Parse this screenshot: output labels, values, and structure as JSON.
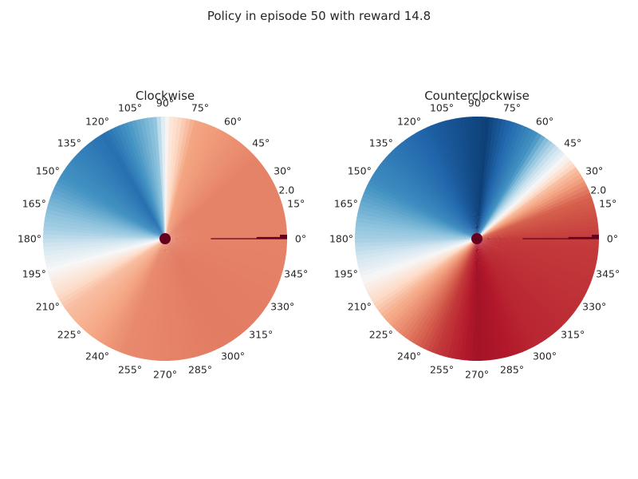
{
  "figure": {
    "title": "Policy in episode 50 with reward 14.8"
  },
  "chart_data": [
    {
      "type": "heatmap",
      "projection": "polar",
      "title": "Clockwise",
      "angle_ticks": [
        "0°",
        "15°",
        "30°",
        "45°",
        "60°",
        "75°",
        "90°",
        "105°",
        "120°",
        "135°",
        "150°",
        "165°",
        "180°",
        "195°",
        "210°",
        "225°",
        "240°",
        "255°",
        "270°",
        "285°",
        "300°",
        "315°",
        "330°",
        "345°"
      ],
      "radial_tick": "2.0",
      "rlim": [
        0,
        2.0
      ],
      "colormap": "RdBu_r",
      "grid": false,
      "value_by_angle": [
        {
          "angle": 0,
          "value": 0.75
        },
        {
          "angle": 40,
          "value": 0.75
        },
        {
          "angle": 75,
          "value": 0.7
        },
        {
          "angle": 88,
          "value": 0.55
        },
        {
          "angle": 95,
          "value": 0.3
        },
        {
          "angle": 120,
          "value": 0.12
        },
        {
          "angle": 150,
          "value": 0.2
        },
        {
          "angle": 175,
          "value": 0.33
        },
        {
          "angle": 195,
          "value": 0.5
        },
        {
          "angle": 215,
          "value": 0.65
        },
        {
          "angle": 250,
          "value": 0.74
        },
        {
          "angle": 300,
          "value": 0.76
        },
        {
          "angle": 360,
          "value": 0.75
        }
      ],
      "state_marker": {
        "angle": 0,
        "radius": 0,
        "color": "#67001f"
      },
      "action_indicator": {
        "angle": 0,
        "r_start": 0.75,
        "r_end": 2.0,
        "color": "#67001f"
      }
    },
    {
      "type": "heatmap",
      "projection": "polar",
      "title": "Counterclockwise",
      "angle_ticks": [
        "0°",
        "15°",
        "30°",
        "45°",
        "60°",
        "75°",
        "90°",
        "105°",
        "120°",
        "135°",
        "150°",
        "165°",
        "180°",
        "195°",
        "210°",
        "225°",
        "240°",
        "255°",
        "270°",
        "285°",
        "300°",
        "315°",
        "330°",
        "345°"
      ],
      "radial_tick": "2.0",
      "rlim": [
        0,
        2.0
      ],
      "colormap": "RdBu_r",
      "grid": false,
      "value_by_angle": [
        {
          "angle": 0,
          "value": 0.85
        },
        {
          "angle": 20,
          "value": 0.8
        },
        {
          "angle": 35,
          "value": 0.65
        },
        {
          "angle": 45,
          "value": 0.45
        },
        {
          "angle": 60,
          "value": 0.2
        },
        {
          "angle": 85,
          "value": 0.03
        },
        {
          "angle": 110,
          "value": 0.08
        },
        {
          "angle": 150,
          "value": 0.18
        },
        {
          "angle": 180,
          "value": 0.33
        },
        {
          "angle": 200,
          "value": 0.5
        },
        {
          "angle": 220,
          "value": 0.68
        },
        {
          "angle": 250,
          "value": 0.85
        },
        {
          "angle": 270,
          "value": 0.92
        },
        {
          "angle": 300,
          "value": 0.88
        },
        {
          "angle": 360,
          "value": 0.85
        }
      ],
      "state_marker": {
        "angle": 0,
        "radius": 0,
        "color": "#67001f"
      },
      "action_indicator": {
        "angle": 0,
        "r_start": 0.75,
        "r_end": 2.0,
        "color": "#67001f"
      }
    }
  ]
}
